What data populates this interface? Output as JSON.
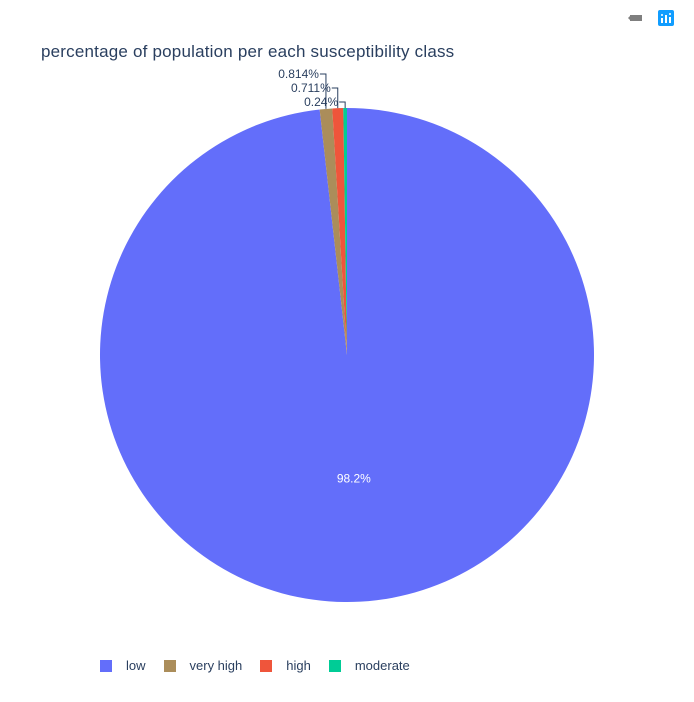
{
  "toolbar": {
    "buttons": [
      {
        "icon": "camera-icon"
      },
      {
        "icon": "plotly-logo-icon"
      }
    ]
  },
  "chart_data": {
    "type": "pie",
    "title": "percentage of population per each susceptibility class",
    "legend_placement": "bottom-left",
    "slices": [
      {
        "label": "low",
        "value": 98.2,
        "text": "98.2%",
        "color": "#636efa"
      },
      {
        "label": "very high",
        "value": 0.814,
        "text": "0.814%",
        "color": "#ab8d5a"
      },
      {
        "label": "high",
        "value": 0.711,
        "text": "0.711%",
        "color": "#ef553b"
      },
      {
        "label": "moderate",
        "value": 0.24,
        "text": "0.24%",
        "color": "#00cc96"
      }
    ],
    "legend_order": [
      "low",
      "very high",
      "high",
      "moderate"
    ]
  }
}
